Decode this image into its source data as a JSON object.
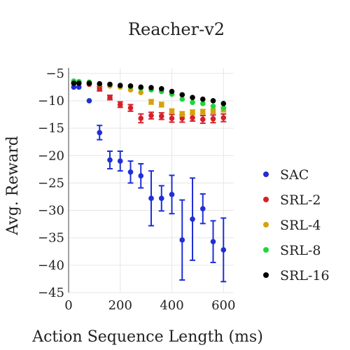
{
  "chart_data": {
    "type": "scatter",
    "title": "Reacher-v2",
    "xlabel": "Action Sequence Length (ms)",
    "ylabel": "Avg. Reward",
    "xlim": [
      0,
      640
    ],
    "ylim": [
      -45,
      -4
    ],
    "x_ticks": [
      0,
      200,
      400,
      600
    ],
    "y_ticks": [
      -5,
      -10,
      -15,
      -20,
      -25,
      -30,
      -35,
      -40,
      -45
    ],
    "grid": true,
    "legend_position": "right",
    "series": [
      {
        "name": "SAC",
        "color": "#1f2fd6",
        "marker": "circle",
        "points": [
          {
            "x": 20,
            "y": -7.5,
            "err": 0.3
          },
          {
            "x": 40,
            "y": -7.5,
            "err": 0.3
          },
          {
            "x": 80,
            "y": -10.0,
            "err": 0.3
          },
          {
            "x": 120,
            "y": -15.8,
            "err": 1.3
          },
          {
            "x": 160,
            "y": -20.8,
            "err": 1.6
          },
          {
            "x": 200,
            "y": -21.0,
            "err": 1.8
          },
          {
            "x": 240,
            "y": -23.0,
            "err": 2.0
          },
          {
            "x": 280,
            "y": -23.7,
            "err": 2.2
          },
          {
            "x": 320,
            "y": -27.8,
            "err": 5.0
          },
          {
            "x": 360,
            "y": -27.8,
            "err": 2.3
          },
          {
            "x": 400,
            "y": -27.1,
            "err": 3.5
          },
          {
            "x": 440,
            "y": -35.4,
            "err": 7.3
          },
          {
            "x": 480,
            "y": -31.6,
            "err": 7.5
          },
          {
            "x": 520,
            "y": -29.7,
            "err": 2.7
          },
          {
            "x": 560,
            "y": -35.7,
            "err": 3.8
          },
          {
            "x": 600,
            "y": -37.2,
            "err": 5.8
          }
        ]
      },
      {
        "name": "SRL-2",
        "color": "#d6202a",
        "marker": "circle",
        "points": [
          {
            "x": 20,
            "y": -6.8,
            "err": 0.3
          },
          {
            "x": 40,
            "y": -6.8,
            "err": 0.3
          },
          {
            "x": 80,
            "y": -7.0,
            "err": 0.3
          },
          {
            "x": 120,
            "y": -7.8,
            "err": 0.4
          },
          {
            "x": 160,
            "y": -9.4,
            "err": 0.4
          },
          {
            "x": 200,
            "y": -10.7,
            "err": 0.5
          },
          {
            "x": 240,
            "y": -11.3,
            "err": 0.6
          },
          {
            "x": 280,
            "y": -13.2,
            "err": 0.8
          },
          {
            "x": 320,
            "y": -12.7,
            "err": 0.6
          },
          {
            "x": 360,
            "y": -12.8,
            "err": 0.6
          },
          {
            "x": 400,
            "y": -13.2,
            "err": 0.7
          },
          {
            "x": 440,
            "y": -13.2,
            "err": 0.7
          },
          {
            "x": 480,
            "y": -13.1,
            "err": 0.6
          },
          {
            "x": 520,
            "y": -13.4,
            "err": 0.7
          },
          {
            "x": 560,
            "y": -13.3,
            "err": 0.7
          },
          {
            "x": 600,
            "y": -13.1,
            "err": 0.7
          }
        ]
      },
      {
        "name": "SRL-4",
        "color": "#d4a20a",
        "marker": "circle",
        "points": [
          {
            "x": 20,
            "y": -6.6,
            "err": 0.2
          },
          {
            "x": 40,
            "y": -6.6,
            "err": 0.2
          },
          {
            "x": 80,
            "y": -6.8,
            "err": 0.2
          },
          {
            "x": 120,
            "y": -7.0,
            "err": 0.2
          },
          {
            "x": 160,
            "y": -7.3,
            "err": 0.2
          },
          {
            "x": 200,
            "y": -7.5,
            "err": 0.2
          },
          {
            "x": 240,
            "y": -8.0,
            "err": 0.3
          },
          {
            "x": 280,
            "y": -8.5,
            "err": 0.3
          },
          {
            "x": 320,
            "y": -10.2,
            "err": 0.4
          },
          {
            "x": 360,
            "y": -10.7,
            "err": 0.4
          },
          {
            "x": 400,
            "y": -11.9,
            "err": 0.4
          },
          {
            "x": 440,
            "y": -12.4,
            "err": 0.4
          },
          {
            "x": 480,
            "y": -12.1,
            "err": 0.4
          },
          {
            "x": 520,
            "y": -12.0,
            "err": 0.4
          },
          {
            "x": 560,
            "y": -11.9,
            "err": 0.4
          },
          {
            "x": 600,
            "y": -11.6,
            "err": 0.4
          }
        ]
      },
      {
        "name": "SRL-8",
        "color": "#1fd63f",
        "marker": "circle",
        "points": [
          {
            "x": 20,
            "y": -6.4,
            "err": 0.2
          },
          {
            "x": 40,
            "y": -6.5,
            "err": 0.2
          },
          {
            "x": 80,
            "y": -6.6,
            "err": 0.2
          },
          {
            "x": 120,
            "y": -6.9,
            "err": 0.2
          },
          {
            "x": 160,
            "y": -7.0,
            "err": 0.2
          },
          {
            "x": 200,
            "y": -7.2,
            "err": 0.2
          },
          {
            "x": 240,
            "y": -7.4,
            "err": 0.2
          },
          {
            "x": 280,
            "y": -7.7,
            "err": 0.2
          },
          {
            "x": 320,
            "y": -8.0,
            "err": 0.2
          },
          {
            "x": 360,
            "y": -8.3,
            "err": 0.2
          },
          {
            "x": 400,
            "y": -8.8,
            "err": 0.3
          },
          {
            "x": 440,
            "y": -9.7,
            "err": 0.3
          },
          {
            "x": 480,
            "y": -10.3,
            "err": 0.3
          },
          {
            "x": 520,
            "y": -10.5,
            "err": 0.3
          },
          {
            "x": 560,
            "y": -11.0,
            "err": 0.3
          },
          {
            "x": 600,
            "y": -11.3,
            "err": 0.3
          }
        ]
      },
      {
        "name": "SRL-16",
        "color": "#000000",
        "marker": "circle",
        "points": [
          {
            "x": 20,
            "y": -6.8,
            "err": 0.2
          },
          {
            "x": 40,
            "y": -6.8,
            "err": 0.2
          },
          {
            "x": 80,
            "y": -6.8,
            "err": 0.2
          },
          {
            "x": 120,
            "y": -6.9,
            "err": 0.2
          },
          {
            "x": 160,
            "y": -7.0,
            "err": 0.2
          },
          {
            "x": 200,
            "y": -7.2,
            "err": 0.2
          },
          {
            "x": 240,
            "y": -7.3,
            "err": 0.2
          },
          {
            "x": 280,
            "y": -7.5,
            "err": 0.2
          },
          {
            "x": 320,
            "y": -7.6,
            "err": 0.2
          },
          {
            "x": 360,
            "y": -7.8,
            "err": 0.2
          },
          {
            "x": 400,
            "y": -8.3,
            "err": 0.2
          },
          {
            "x": 440,
            "y": -8.9,
            "err": 0.2
          },
          {
            "x": 480,
            "y": -9.4,
            "err": 0.2
          },
          {
            "x": 520,
            "y": -9.7,
            "err": 0.2
          },
          {
            "x": 560,
            "y": -10.0,
            "err": 0.2
          },
          {
            "x": 600,
            "y": -10.5,
            "err": 0.2
          }
        ]
      }
    ]
  }
}
